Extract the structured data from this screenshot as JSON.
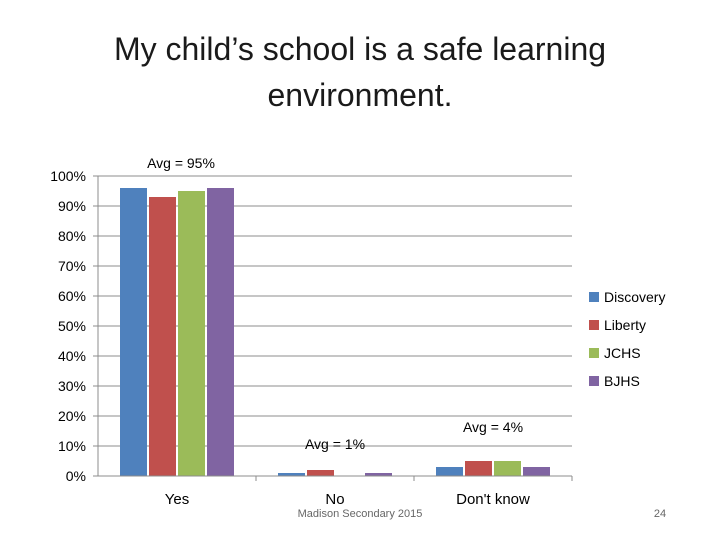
{
  "slide": {
    "footer": "Madison Secondary 2015",
    "page_number": "24"
  },
  "chart_data": {
    "type": "bar",
    "title": "My child’s school is a safe learning environment.",
    "categories": [
      "Yes",
      "No",
      "Don't know"
    ],
    "series": [
      {
        "name": "Discovery",
        "color": "#4f81bd",
        "values": [
          96,
          1,
          3
        ]
      },
      {
        "name": "Liberty",
        "color": "#c0504d",
        "values": [
          93,
          2,
          5
        ]
      },
      {
        "name": "JCHS",
        "color": "#9bbb59",
        "values": [
          95,
          0,
          5
        ]
      },
      {
        "name": "BJHS",
        "color": "#8064a2",
        "values": [
          96,
          1,
          3
        ]
      }
    ],
    "yticks": [
      "0%",
      "10%",
      "20%",
      "30%",
      "40%",
      "50%",
      "60%",
      "70%",
      "80%",
      "90%",
      "100%"
    ],
    "ylim": [
      0,
      100
    ],
    "annotations": [
      "Avg = 95%",
      "Avg = 1%",
      "Avg = 4%"
    ],
    "grid": true,
    "legend_position": "right"
  }
}
